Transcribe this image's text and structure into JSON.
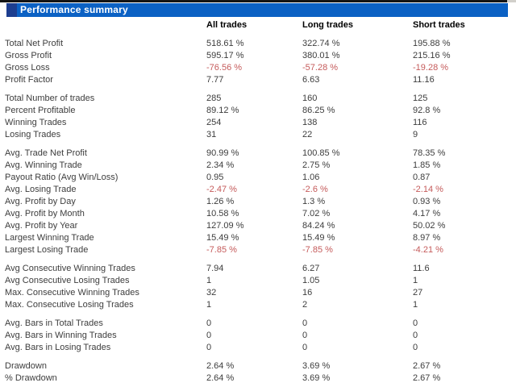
{
  "header": {
    "title": "Performance summary"
  },
  "colors": {
    "header_bar_blue": "#0b61c4",
    "header_square_navy": "#1d3e8f",
    "negative_value_red": "#c55b5b",
    "text_gray": "#3d3d3d",
    "top_strip_black": "#151515"
  },
  "table": {
    "columns": [
      "All trades",
      "Long trades",
      "Short trades"
    ],
    "sections": [
      {
        "rows": [
          {
            "label": "Total Net Profit",
            "values": [
              "518.61 %",
              "322.74 %",
              "195.88 %"
            ]
          },
          {
            "label": "Gross Profit",
            "values": [
              "595.17 %",
              "380.01 %",
              "215.16 %"
            ]
          },
          {
            "label": "Gross Loss",
            "values": [
              "-76.56 %",
              "-57.28 %",
              "-19.28 %"
            ]
          },
          {
            "label": "Profit Factor",
            "values": [
              "7.77",
              "6.63",
              "11.16"
            ]
          }
        ]
      },
      {
        "rows": [
          {
            "label": "Total Number of trades",
            "values": [
              "285",
              "160",
              "125"
            ]
          },
          {
            "label": "Percent Profitable",
            "values": [
              "89.12 %",
              "86.25 %",
              "92.8 %"
            ]
          },
          {
            "label": "Winning Trades",
            "values": [
              "254",
              "138",
              "116"
            ]
          },
          {
            "label": "Losing Trades",
            "values": [
              "31",
              "22",
              "9"
            ]
          }
        ]
      },
      {
        "rows": [
          {
            "label": "Avg. Trade Net Profit",
            "values": [
              "90.99 %",
              "100.85 %",
              "78.35 %"
            ]
          },
          {
            "label": "Avg. Winning Trade",
            "values": [
              "2.34 %",
              "2.75 %",
              "1.85 %"
            ]
          },
          {
            "label": "Payout Ratio (Avg Win/Loss)",
            "values": [
              "0.95",
              "1.06",
              "0.87"
            ]
          },
          {
            "label": "Avg. Losing Trade",
            "values": [
              "-2.47 %",
              "-2.6 %",
              "-2.14 %"
            ]
          },
          {
            "label": "Avg. Profit by Day",
            "values": [
              "1.26 %",
              "1.3 %",
              "0.93 %"
            ]
          },
          {
            "label": "Avg. Profit by Month",
            "values": [
              "10.58 %",
              "7.02 %",
              "4.17 %"
            ]
          },
          {
            "label": "Avg. Profit by Year",
            "values": [
              "127.09 %",
              "84.24 %",
              "50.02 %"
            ]
          },
          {
            "label": "Largest Winning Trade",
            "values": [
              "15.49 %",
              "15.49 %",
              "8.97 %"
            ]
          },
          {
            "label": "Largest Losing Trade",
            "values": [
              "-7.85 %",
              "-7.85 %",
              "-4.21 %"
            ]
          }
        ]
      },
      {
        "rows": [
          {
            "label": "Avg Consecutive Winning Trades",
            "values": [
              "7.94",
              "6.27",
              "11.6"
            ]
          },
          {
            "label": "Avg Consecutive Losing Trades",
            "values": [
              "1",
              "1.05",
              "1"
            ]
          },
          {
            "label": "Max. Consecutive Winning Trades",
            "values": [
              "32",
              "16",
              "27"
            ]
          },
          {
            "label": "Max. Consecutive Losing Trades",
            "values": [
              "1",
              "2",
              "1"
            ]
          }
        ]
      },
      {
        "rows": [
          {
            "label": "Avg. Bars in Total Trades",
            "values": [
              "0",
              "0",
              "0"
            ]
          },
          {
            "label": "Avg. Bars in Winning Trades",
            "values": [
              "0",
              "0",
              "0"
            ]
          },
          {
            "label": "Avg. Bars in Losing Trades",
            "values": [
              "0",
              "0",
              "0"
            ]
          }
        ]
      },
      {
        "rows": [
          {
            "label": "Drawdown",
            "values": [
              "2.64 %",
              "3.69 %",
              "2.67 %"
            ]
          },
          {
            "label": "% Drawdown",
            "values": [
              "2.64 %",
              "3.69 %",
              "2.67 %"
            ]
          }
        ]
      }
    ]
  }
}
